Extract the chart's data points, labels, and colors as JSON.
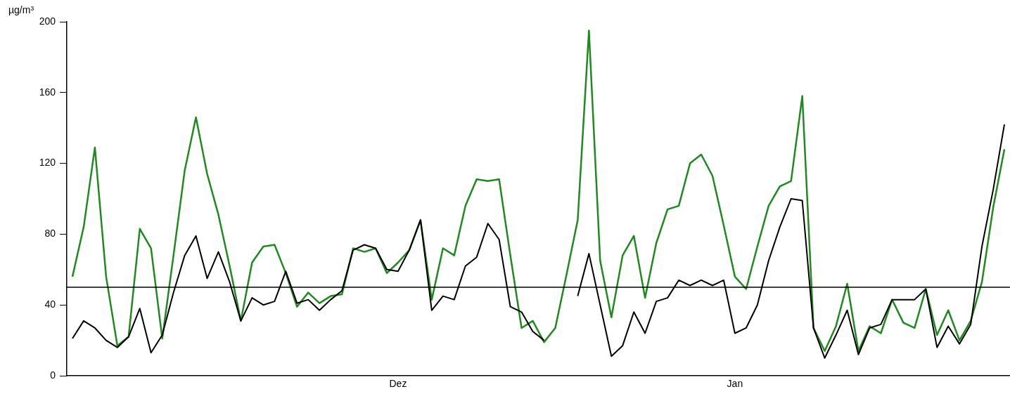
{
  "chart_data": {
    "type": "line",
    "ylabel": "µg/m³",
    "marker": "none",
    "grid": false,
    "legend": false,
    "categories": [
      null,
      null,
      null,
      null,
      null,
      null,
      null,
      null,
      null,
      null,
      null,
      null,
      null,
      null,
      null,
      null,
      null,
      null,
      null,
      null,
      null,
      null,
      null,
      null,
      null,
      null,
      null,
      null,
      null,
      "Dez",
      null,
      null,
      null,
      null,
      null,
      null,
      null,
      null,
      null,
      null,
      null,
      null,
      null,
      null,
      null,
      null,
      null,
      null,
      null,
      null,
      null,
      null,
      null,
      null,
      null,
      null,
      null,
      null,
      null,
      "Jan",
      null,
      null,
      null,
      null,
      null,
      null,
      null,
      null,
      null,
      null,
      null,
      null,
      null,
      null,
      null,
      null,
      null,
      null,
      null,
      null,
      null,
      null,
      null,
      null
    ],
    "series": [
      {
        "color": "#000000",
        "values": [
          21,
          31,
          27,
          20,
          16,
          22,
          38,
          13,
          23,
          47,
          68,
          79,
          55,
          70,
          53,
          31,
          44,
          40,
          42,
          59,
          41,
          43,
          37,
          43,
          48,
          71,
          74,
          72,
          60,
          59,
          71,
          88,
          37,
          45,
          43,
          62,
          67,
          86,
          77,
          39,
          36,
          25,
          20,
          null,
          null,
          45,
          69,
          40,
          11,
          17,
          36,
          24,
          42,
          44,
          54,
          51,
          54,
          51,
          54,
          24,
          27,
          40,
          65,
          84,
          100,
          99,
          27,
          10,
          23,
          37,
          12,
          27,
          29,
          43,
          43,
          43,
          49,
          16,
          28,
          18,
          29,
          73,
          105,
          142
        ]
      },
      {
        "color": "#1f8a1f",
        "values": [
          56,
          84,
          129,
          56,
          17,
          22,
          83,
          72,
          21,
          68,
          116,
          146,
          114,
          91,
          62,
          31,
          64,
          73,
          74,
          58,
          39,
          47,
          41,
          45,
          46,
          72,
          70,
          72,
          58,
          64,
          71,
          88,
          43,
          72,
          68,
          96,
          111,
          110,
          111,
          68,
          27,
          31,
          19,
          27,
          57,
          88,
          195,
          65,
          33,
          68,
          79,
          44,
          75,
          94,
          96,
          120,
          125,
          113,
          85,
          56,
          49,
          73,
          96,
          107,
          110,
          158,
          27,
          14,
          28,
          52,
          14,
          28,
          24,
          43,
          30,
          27,
          49,
          23,
          37,
          20,
          31,
          53,
          95,
          128
        ]
      }
    ],
    "ylim": [
      0,
      200
    ],
    "yticks": [
      0,
      40,
      80,
      120,
      160,
      200
    ],
    "ref_lines": [
      {
        "axis": "y",
        "value": 50,
        "color": "#000000"
      }
    ]
  }
}
